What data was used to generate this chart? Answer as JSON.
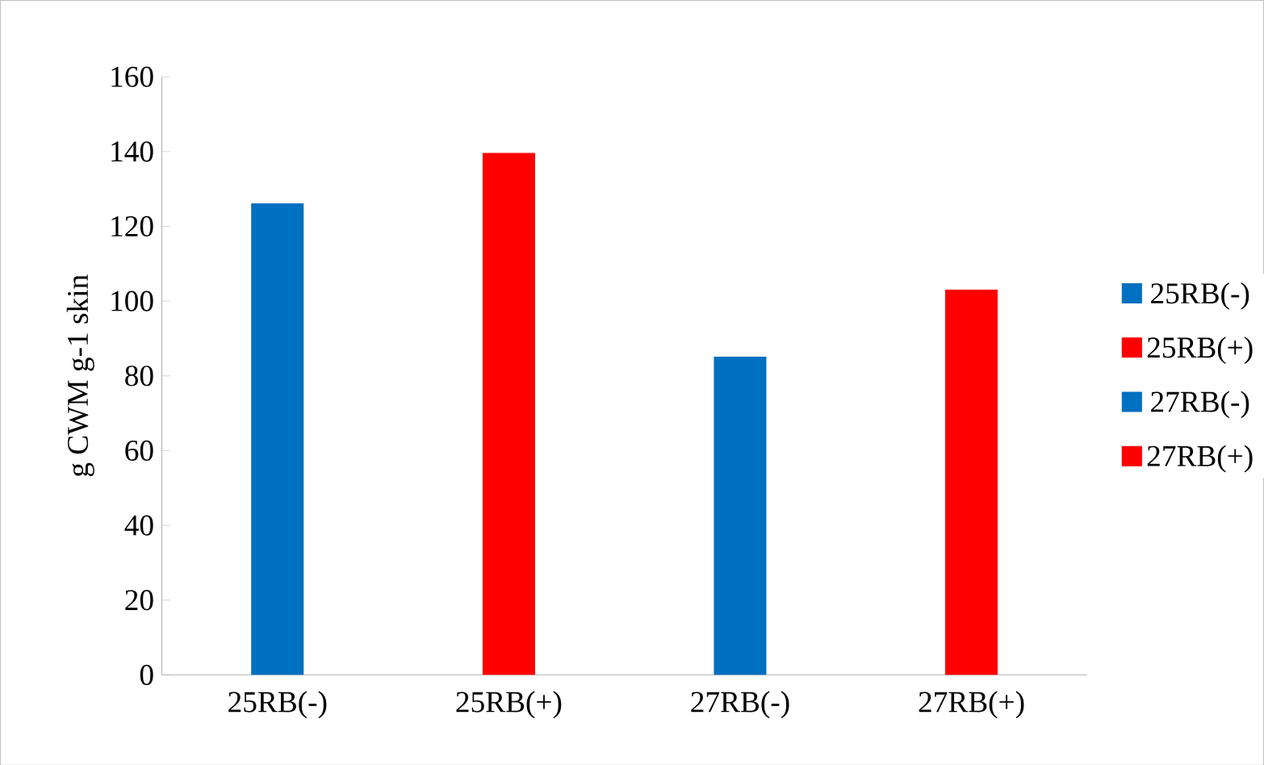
{
  "chart_data": {
    "type": "bar",
    "ylabel": "g CWM g-1 skin",
    "categories": [
      "25RB(-)",
      "25RB(+)",
      "27RB(-)",
      "27RB(+)"
    ],
    "series": [
      {
        "name": "25RB(-)",
        "color": "#0070c0",
        "values": [
          126,
          null,
          null,
          null
        ]
      },
      {
        "name": "25RB(+)",
        "color": "#ff0000",
        "values": [
          null,
          139.5,
          null,
          null
        ]
      },
      {
        "name": "27RB(-)",
        "color": "#0070c0",
        "values": [
          null,
          null,
          85,
          null
        ]
      },
      {
        "name": "27RB(+)",
        "color": "#ff0000",
        "values": [
          null,
          null,
          null,
          103
        ]
      }
    ],
    "ylim": [
      0,
      160
    ],
    "yticks": [
      0,
      20,
      40,
      60,
      80,
      100,
      120,
      140,
      160
    ],
    "grid": false,
    "legend": "right"
  }
}
